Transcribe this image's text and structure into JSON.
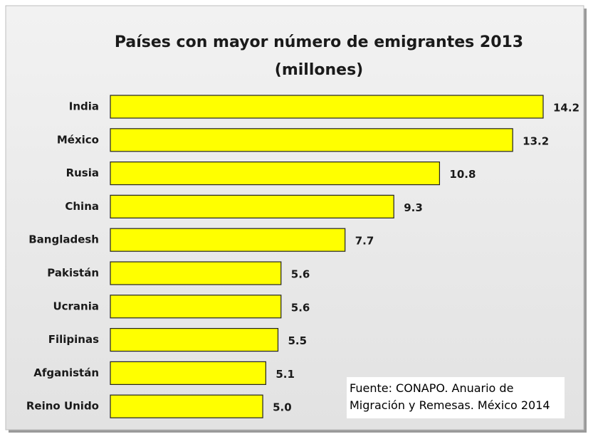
{
  "chart_data": {
    "type": "bar",
    "orientation": "horizontal",
    "title": "Países con mayor número de emigrantes 2013",
    "subtitle": "(millones)",
    "categories": [
      "India",
      "México",
      "Rusia",
      "China",
      "Bangladesh",
      "Pakistán",
      "Ucrania",
      "Filipinas",
      "Afganistán",
      "Reino Unido"
    ],
    "values": [
      14.2,
      13.2,
      10.8,
      9.3,
      7.7,
      5.6,
      5.6,
      5.5,
      5.1,
      5.0
    ],
    "value_labels": [
      "14.2",
      "13.2",
      "10.8",
      "9.3",
      "7.7",
      "5.6",
      "5.6",
      "5.5",
      "5.1",
      "5.0"
    ],
    "color": "#ffff00",
    "note": "Fuente: CONAPO. Anuario de Migración y Remesas. México 2014"
  }
}
